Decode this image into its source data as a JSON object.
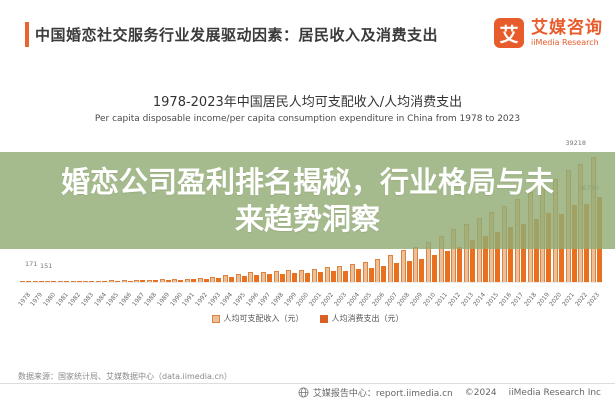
{
  "header": {
    "title": "中国婚恋社交服务行业发展驱动因素：居民收入及消费支出",
    "logo": {
      "mark": "艾",
      "cn": "艾媒咨询",
      "en": "iiMedia Research"
    }
  },
  "overlay": {
    "text": "婚恋公司盈利排名揭秘，行业格局与未来趋势洞察"
  },
  "chart_data": {
    "type": "bar",
    "title": "1978-2023年中国居民人均可支配收入/人均消费支出",
    "subtitle": "Per capita disposable income/per capita consumption expenditure in China from 1978 to 2023",
    "categories": [
      1978,
      1979,
      1980,
      1981,
      1982,
      1983,
      1984,
      1985,
      1986,
      1987,
      1988,
      1989,
      1990,
      1991,
      1992,
      1993,
      1994,
      1995,
      1996,
      1997,
      1998,
      1999,
      2000,
      2001,
      2002,
      2003,
      2004,
      2005,
      2006,
      2007,
      2008,
      2009,
      2010,
      2011,
      2012,
      2013,
      2014,
      2015,
      2016,
      2017,
      2018,
      2019,
      2020,
      2021,
      2022,
      2023
    ],
    "series": [
      {
        "name": "人均可支配收入（元）",
        "style": "patterned-orange",
        "values": [
          171,
          200,
          247,
          277,
          308,
          343,
          398,
          479,
          540,
          617,
          747,
          843,
          934,
          1035,
          1230,
          1550,
          2079,
          2582,
          2983,
          3257,
          3426,
          3632,
          3892,
          4187,
          4554,
          4993,
          5645,
          6384,
          7229,
          8583,
          9957,
          10977,
          12520,
          14551,
          16510,
          18311,
          20167,
          21966,
          23821,
          25974,
          28228,
          30733,
          32189,
          35128,
          36883,
          39218
        ]
      },
      {
        "name": "人均消费支出（元）",
        "style": "solid-orange",
        "values": [
          151,
          173,
          214,
          236,
          257,
          283,
          321,
          407,
          452,
          513,
          621,
          687,
          747,
          822,
          962,
          1205,
          1602,
          2005,
          2318,
          2477,
          2574,
          2703,
          2917,
          3086,
          3313,
          3560,
          3977,
          4468,
          5010,
          5861,
          6684,
          7329,
          8318,
          9692,
          10854,
          13220,
          14491,
          15712,
          17111,
          18322,
          19853,
          21559,
          21210,
          24100,
          24538,
          26796
        ]
      }
    ],
    "ylim": [
      0,
      40000
    ],
    "grid": false,
    "legend_position": "bottom",
    "value_labels": {
      "first_income": "171",
      "first_consumption": "151",
      "last_income": "39218",
      "last_consumption": "26796"
    }
  },
  "colors": {
    "accent": "#E8652F",
    "income_border": "#DE8240",
    "income_fill": "#F7DCC0",
    "consumption": "#E8701F",
    "overlay_band": "#A6BB8D"
  },
  "footer": {
    "source": "数据来源：国家统计局、艾媒数据中心（data.iimedia.cn）",
    "report_center": "艾媒报告中心：report.iimedia.cn",
    "copyright": "©2024",
    "company": "iiMedia Research Inc"
  }
}
